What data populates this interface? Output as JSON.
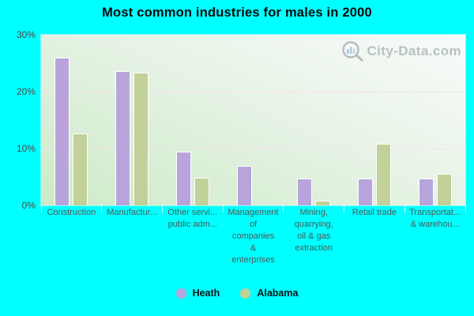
{
  "title": "Most common industries for males in 2000",
  "watermark": {
    "text": "City-Data.com"
  },
  "colors": {
    "background": "#00ffff",
    "heath_bar": "#b8a4da",
    "alabama_bar": "#c2d099",
    "bar_border": "#ffffff",
    "gridline": "#f4e2ec",
    "axis_text": "#4a4a4a",
    "category_text": "#4e5858",
    "watermark_text": "#aab3b9"
  },
  "legend": {
    "items": [
      {
        "label": "Heath",
        "color": "#b8a4da"
      },
      {
        "label": "Alabama",
        "color": "#c2d099"
      }
    ]
  },
  "chart_data": {
    "type": "bar",
    "title": "Most common industries for males in 2000",
    "categories": [
      "Construction",
      "Manufacturing",
      "Other services, except public administration",
      "Management of companies & enterprises",
      "Mining, quarrying, oil & gas extraction",
      "Retail trade",
      "Transportation & warehousing"
    ],
    "category_labels_displayed": [
      [
        "Construction"
      ],
      [
        "Manufactur..."
      ],
      [
        "Other servi...",
        "public adm..."
      ],
      [
        "Management",
        "of",
        "companies",
        "&",
        "enterprises"
      ],
      [
        "Mining,",
        "quarrying,",
        "oil & gas",
        "extraction"
      ],
      [
        "Retail trade"
      ],
      [
        "Transportat...",
        "& warehou..."
      ]
    ],
    "series": [
      {
        "name": "Heath",
        "color": "#b8a4da",
        "values": [
          26.0,
          23.6,
          9.5,
          7.0,
          4.7,
          4.7,
          4.7
        ]
      },
      {
        "name": "Alabama",
        "color": "#c2d099",
        "values": [
          12.6,
          23.3,
          4.9,
          0,
          0.8,
          10.9,
          5.5
        ]
      }
    ],
    "values_unit": "%",
    "xlabel": "",
    "ylabel": "",
    "ylim": [
      0,
      30
    ],
    "yticks": [
      "30%",
      "20%",
      "10%",
      "0%"
    ],
    "grid": "horizontal",
    "legend_position": "bottom"
  }
}
